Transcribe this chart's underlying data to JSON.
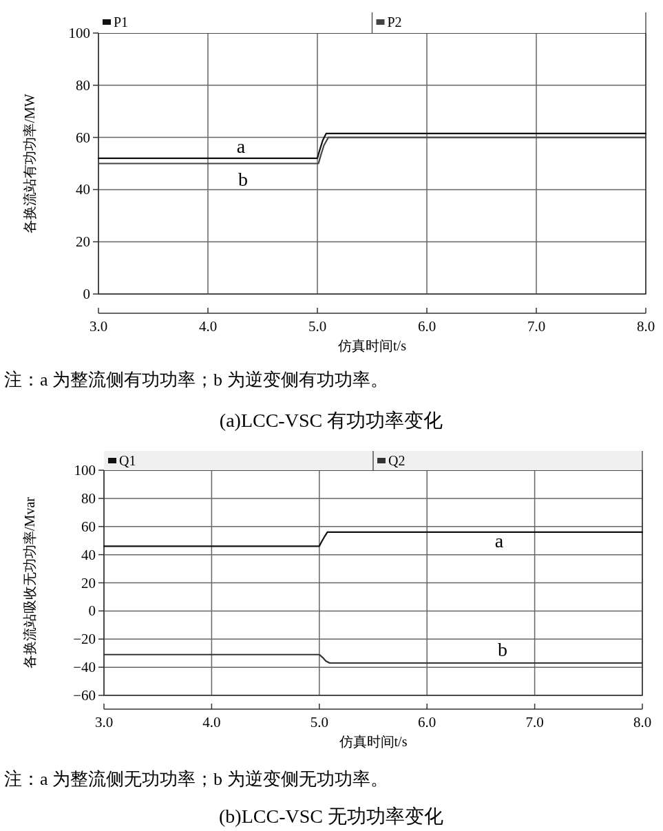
{
  "chart_data": [
    {
      "type": "line",
      "xlabel": "仿真时间t/s",
      "ylabel": "各换流站有功功率/MW",
      "xlim": [
        3,
        8
      ],
      "ylim": [
        0,
        100
      ],
      "xticks": [
        {
          "value": 3,
          "label": "3.0"
        },
        {
          "value": 4,
          "label": "4.0"
        },
        {
          "value": 5,
          "label": "5.0"
        },
        {
          "value": 6,
          "label": "6.0"
        },
        {
          "value": 7,
          "label": "7.0"
        },
        {
          "value": 8,
          "label": "8.0"
        }
      ],
      "yticks": [
        0,
        20,
        40,
        60,
        80,
        100
      ],
      "grid": true,
      "legend": "top",
      "series": [
        {
          "name": "P1",
          "color": "#111111",
          "x": [
            3,
            5.0,
            5.02,
            5.05,
            5.08,
            8
          ],
          "values": [
            52,
            52,
            55,
            59,
            61.5,
            61.5
          ]
        },
        {
          "name": "P2",
          "color": "#444444",
          "x": [
            3,
            5.01,
            5.03,
            5.06,
            5.1,
            8
          ],
          "values": [
            50,
            50,
            53,
            57,
            60,
            60
          ]
        }
      ],
      "annotations": [
        "a",
        "b",
        "注：a 为整流侧有功功率；b 为逆变侧有功功率。",
        "(a)LCC-VSC 有功功率变化"
      ]
    },
    {
      "type": "line",
      "xlabel": "仿真时间t/s",
      "ylabel": "各换流站吸收无功功率/Mvar",
      "xlim": [
        3,
        8
      ],
      "ylim": [
        -60,
        100
      ],
      "xticks": [
        {
          "value": 3,
          "label": "3.0"
        },
        {
          "value": 4,
          "label": "4.0"
        },
        {
          "value": 5,
          "label": "5.0"
        },
        {
          "value": 6,
          "label": "6.0"
        },
        {
          "value": 7,
          "label": "7.0"
        },
        {
          "value": 8,
          "label": "8.0"
        }
      ],
      "yticks": [
        {
          "value": -60,
          "label": "−60"
        },
        {
          "value": -40,
          "label": "−40"
        },
        {
          "value": -20,
          "label": "−20"
        },
        0,
        20,
        40,
        60,
        80,
        100
      ],
      "grid": true,
      "legend": "top",
      "series": [
        {
          "name": "Q1",
          "color": "#111111",
          "x": [
            3,
            5.0,
            5.02,
            5.05,
            5.075,
            8
          ],
          "values": [
            46,
            46,
            49,
            53,
            56,
            56
          ]
        },
        {
          "name": "Q2",
          "color": "#333333",
          "x": [
            3,
            5.0,
            5.03,
            5.06,
            5.095,
            8
          ],
          "values": [
            -31,
            -31,
            -33,
            -35.5,
            -37,
            -37
          ]
        }
      ],
      "annotations": [
        "a",
        "b",
        "注：a 为整流侧无功功率；b 为逆变侧无功功率。",
        "(b)LCC-VSC 无功功率变化"
      ]
    }
  ]
}
